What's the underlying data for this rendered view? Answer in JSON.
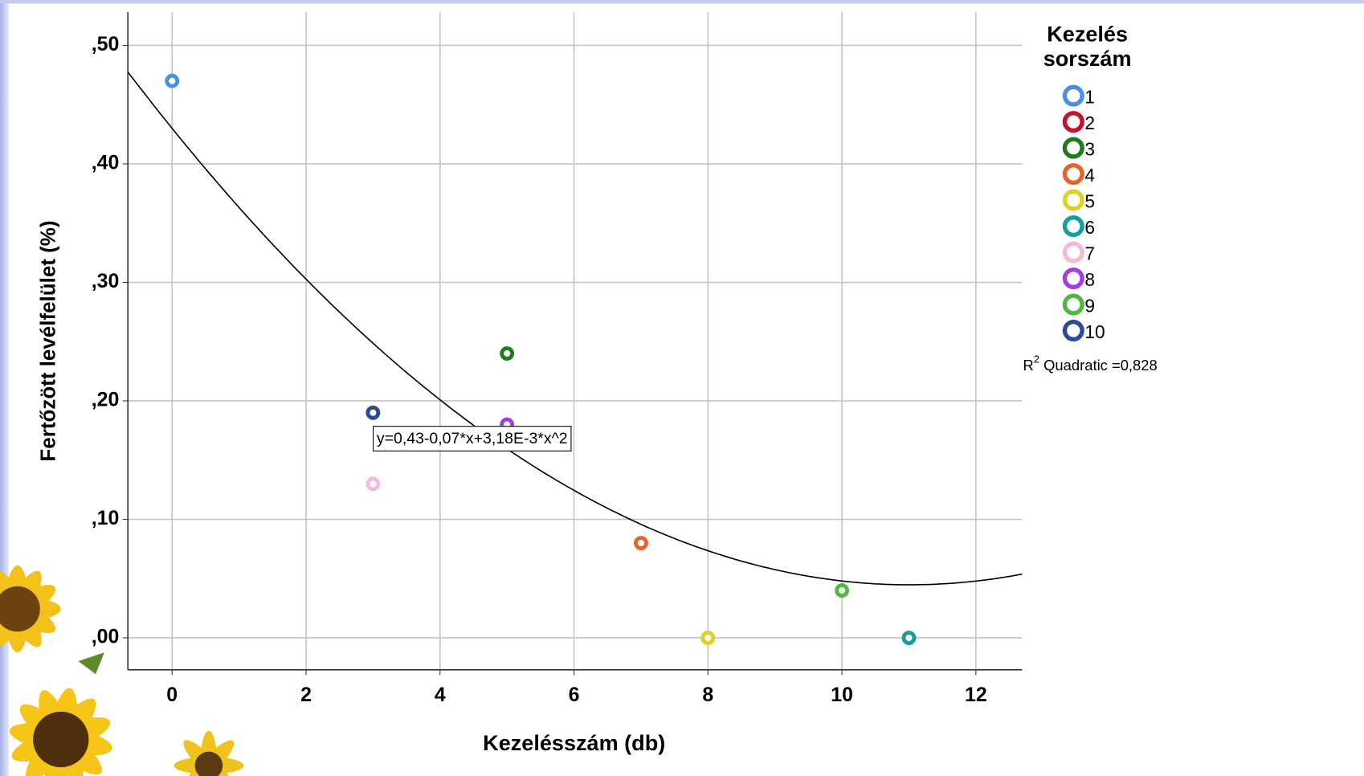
{
  "chart_data": {
    "type": "scatter",
    "x_label": "Kezelésszám (db)",
    "y_label": "Fertőzött levélfelület (%)",
    "xlim": [
      -0.66,
      12.69
    ],
    "ylim": [
      -0.027,
      0.528
    ],
    "xticks": [
      0,
      2,
      4,
      6,
      8,
      10,
      12
    ],
    "yticks": [
      {
        "value": 0,
        "label": ",00"
      },
      {
        "value": 0.1,
        "label": ",10"
      },
      {
        "value": 0.2,
        "label": ",20"
      },
      {
        "value": 0.3,
        "label": ",30"
      },
      {
        "value": 0.4,
        "label": ",40"
      },
      {
        "value": 0.5,
        "label": ",50"
      }
    ],
    "grid": true,
    "legend_title": [
      "Kezelés",
      "sorszám"
    ],
    "series": [
      {
        "name": "1",
        "color": "#4a90e2",
        "x": [
          0
        ],
        "values": [
          0.47
        ]
      },
      {
        "name": "2",
        "color": "#c8102e",
        "x": [],
        "values": []
      },
      {
        "name": "3",
        "color": "#1e7b1e",
        "x": [
          5
        ],
        "values": [
          0.24
        ]
      },
      {
        "name": "4",
        "color": "#e8632c",
        "x": [
          7
        ],
        "values": [
          0.08
        ]
      },
      {
        "name": "5",
        "color": "#e0d020",
        "x": [
          8
        ],
        "values": [
          0
        ]
      },
      {
        "name": "6",
        "color": "#10a0a0",
        "x": [
          11
        ],
        "values": [
          0
        ]
      },
      {
        "name": "7",
        "color": "#f5b8d8",
        "x": [
          3
        ],
        "values": [
          0.13
        ]
      },
      {
        "name": "8",
        "color": "#a040e0",
        "x": [
          5
        ],
        "values": [
          0.18
        ]
      },
      {
        "name": "9",
        "color": "#50b840",
        "x": [
          10
        ],
        "values": [
          0.04
        ]
      },
      {
        "name": "10",
        "color": "#2c4a9a",
        "x": [
          3
        ],
        "values": [
          0.19
        ]
      }
    ],
    "fit": {
      "coefficients": [
        0.43,
        -0.07,
        0.00318
      ],
      "label": "y=0,43-0,07*x+3,18E-3*x^2",
      "color": "#000000"
    },
    "r2": {
      "symbol": "R",
      "sup": "2",
      "text": " Quadratic =0,828"
    }
  }
}
